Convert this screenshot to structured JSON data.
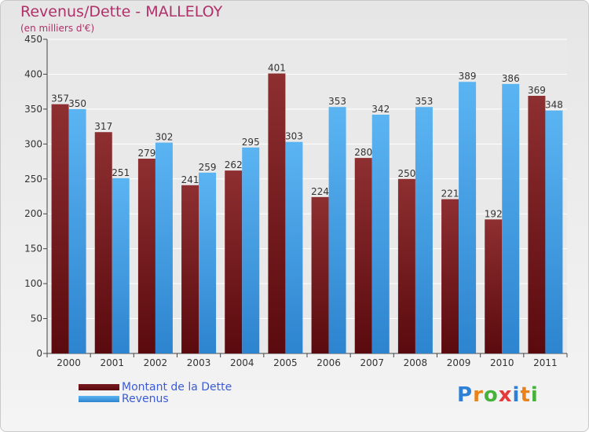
{
  "chart_data": {
    "type": "bar",
    "title": "Revenus/Dette - MALLELOY",
    "subtitle": "(en milliers d'€)",
    "categories": [
      "2000",
      "2001",
      "2002",
      "2003",
      "2004",
      "2005",
      "2006",
      "2007",
      "2008",
      "2009",
      "2010",
      "2011"
    ],
    "series": [
      {
        "name": "Montant de la Dette",
        "values": [
          357,
          317,
          279,
          241,
          262,
          401,
          224,
          280,
          250,
          221,
          192,
          369
        ],
        "color": "#7a1a1e"
      },
      {
        "name": "Revenus",
        "values": [
          350,
          251,
          302,
          259,
          295,
          303,
          353,
          342,
          353,
          389,
          386,
          348
        ],
        "color": "#4aa3e8"
      }
    ],
    "ylim": [
      0,
      450
    ],
    "yticks": [
      0,
      50,
      100,
      150,
      200,
      250,
      300,
      350,
      400,
      450
    ],
    "grid": true,
    "legend_position": "bottom-left"
  },
  "logo": {
    "letters": [
      "P",
      "r",
      "o",
      "x",
      "i",
      "t",
      "i"
    ],
    "colors": [
      "#2e7fd6",
      "#e9821a",
      "#47b23b",
      "#e33b3b",
      "#2e7fd6",
      "#e9821a",
      "#47b23b"
    ]
  }
}
